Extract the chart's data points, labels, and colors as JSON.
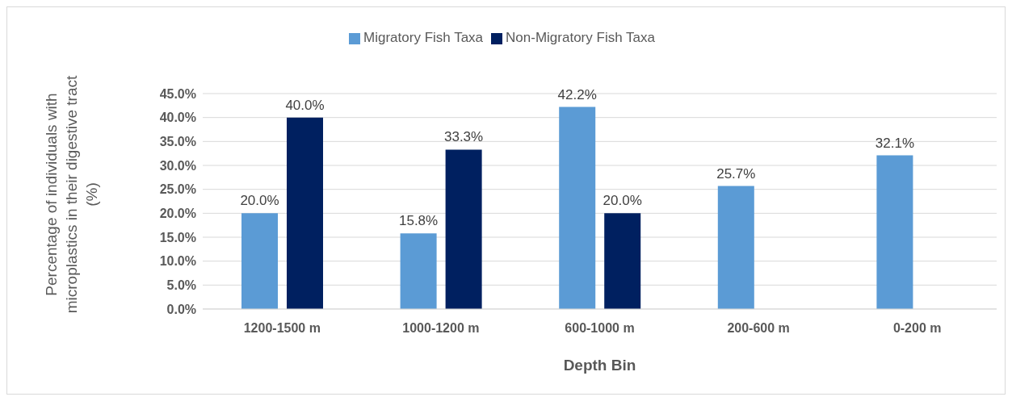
{
  "chart_data": {
    "type": "bar",
    "xlabel": "Depth Bin",
    "ylabel": "Percentage of individuals with microplastics in their digestive tract (%)",
    "categories": [
      "1200-1500 m",
      "1000-1200 m",
      "600-1000 m",
      "200-600 m",
      "0-200 m"
    ],
    "series": [
      {
        "name": "Migratory Fish Taxa",
        "color": "#5b9bd5",
        "values": [
          20.0,
          15.8,
          42.2,
          25.7,
          32.1
        ],
        "value_labels": [
          "20.0%",
          "15.8%",
          "42.2%",
          "25.7%",
          "32.1%"
        ]
      },
      {
        "name": "Non-Migratory Fish Taxa",
        "color": "#002060",
        "values": [
          40.0,
          33.3,
          20.0,
          null,
          null
        ],
        "value_labels": [
          "40.0%",
          "33.3%",
          "20.0%",
          null,
          null
        ]
      }
    ],
    "ylim": [
      0,
      45
    ],
    "yticks": [
      {
        "value": 0,
        "label": "0.0%"
      },
      {
        "value": 5,
        "label": "5.0%"
      },
      {
        "value": 10,
        "label": "10.0%"
      },
      {
        "value": 15,
        "label": "15.0%"
      },
      {
        "value": 20,
        "label": "20.0%"
      },
      {
        "value": 25,
        "label": "25.0%"
      },
      {
        "value": 30,
        "label": "30.0%"
      },
      {
        "value": 35,
        "label": "35.0%"
      },
      {
        "value": 40,
        "label": "40.0%"
      },
      {
        "value": 45,
        "label": "45.0%"
      }
    ],
    "grid": "y",
    "legend": "top"
  }
}
